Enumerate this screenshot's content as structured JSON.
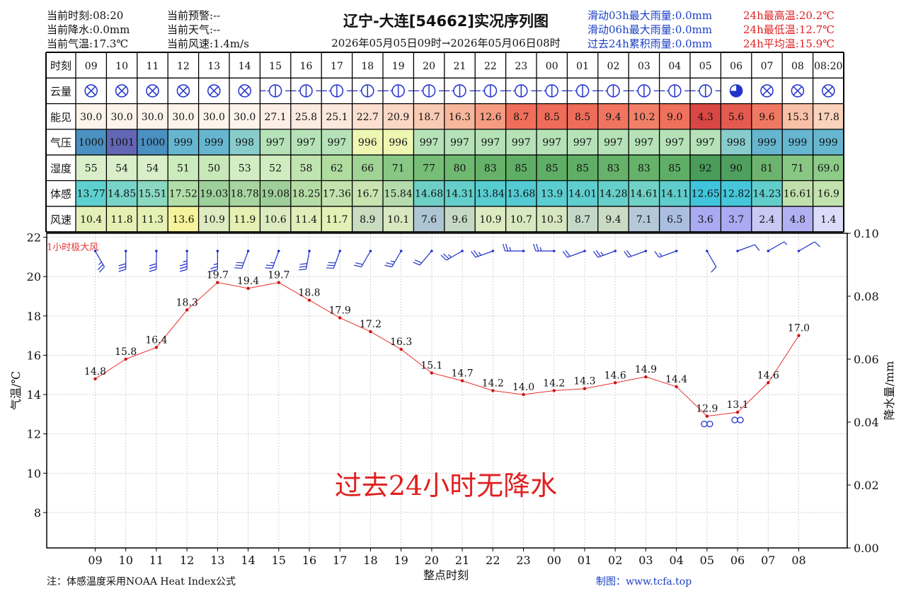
{
  "header": {
    "left": [
      {
        "label": "当前时刻",
        "value": "08:20"
      },
      {
        "label": "当前降水",
        "value": "0.0mm"
      },
      {
        "label": "当前气温",
        "value": "17.3℃"
      }
    ],
    "mid": [
      {
        "label": "当前预警",
        "value": "--"
      },
      {
        "label": "当前天气",
        "value": "--"
      },
      {
        "label": "当前风速",
        "value": "1.4m/s"
      }
    ],
    "title": "辽宁-大连[54662]实况序列图",
    "period": "2026年05月05日09时→2026年05月06日08时",
    "rain": [
      {
        "label": "滑动03h最大雨量",
        "value": "0.0mm"
      },
      {
        "label": "滑动06h最大雨量",
        "value": "0.0mm"
      },
      {
        "label": "过去24h累积雨量",
        "value": "0.0mm"
      }
    ],
    "temps": [
      {
        "label": "24h最高温",
        "value": "20.2℃"
      },
      {
        "label": "24h最低温",
        "value": "12.7℃"
      },
      {
        "label": "24h平均温",
        "value": "15.9℃"
      }
    ]
  },
  "table": {
    "row_labels": [
      "时刻",
      "云量",
      "能见",
      "气压",
      "湿度",
      "体感",
      "风速"
    ],
    "hours": [
      "09",
      "10",
      "11",
      "12",
      "13",
      "14",
      "15",
      "16",
      "17",
      "18",
      "19",
      "20",
      "21",
      "22",
      "23",
      "00",
      "01",
      "02",
      "03",
      "04",
      "05",
      "06",
      "07",
      "08",
      "08:20"
    ],
    "visibility": [
      "30.0",
      "30.0",
      "30.0",
      "30.0",
      "30.0",
      "30.0",
      "27.1",
      "25.8",
      "25.1",
      "22.7",
      "20.9",
      "18.7",
      "16.3",
      "12.6",
      "8.7",
      "8.5",
      "8.5",
      "9.4",
      "10.2",
      "9.0",
      "4.3",
      "5.6",
      "9.6",
      "15.3",
      "17.8"
    ],
    "pressure": [
      "1000",
      "1001",
      "1000",
      "999",
      "999",
      "998",
      "997",
      "997",
      "997",
      "996",
      "996",
      "997",
      "997",
      "997",
      "997",
      "997",
      "997",
      "997",
      "997",
      "997",
      "997",
      "998",
      "999",
      "999",
      "999"
    ],
    "humidity": [
      "55",
      "54",
      "54",
      "51",
      "50",
      "53",
      "52",
      "58",
      "62",
      "66",
      "71",
      "77",
      "80",
      "83",
      "85",
      "85",
      "85",
      "83",
      "83",
      "85",
      "92",
      "90",
      "81",
      "71",
      "69.0"
    ],
    "feels_like": [
      "13.77",
      "14.85",
      "15.51",
      "17.52",
      "19.03",
      "18.78",
      "19.08",
      "18.25",
      "17.36",
      "16.7",
      "15.84",
      "14.68",
      "14.31",
      "13.84",
      "13.68",
      "13.9",
      "14.01",
      "14.28",
      "14.61",
      "14.11",
      "12.65",
      "12.82",
      "14.23",
      "16.61",
      "16.9"
    ],
    "wind_speed": [
      "10.4",
      "11.8",
      "11.3",
      "13.6",
      "10.9",
      "11.9",
      "10.6",
      "11.4",
      "11.7",
      "8.9",
      "10.1",
      "7.6",
      "9.6",
      "10.9",
      "10.7",
      "10.3",
      "8.7",
      "9.4",
      "7.1",
      "6.5",
      "3.6",
      "3.7",
      "2.4",
      "4.8",
      "1.4"
    ],
    "cloud": [
      "overcast",
      "overcast",
      "overcast",
      "overcast",
      "overcast",
      "overcast",
      "half",
      "half",
      "half",
      "half",
      "half",
      "half",
      "half",
      "half",
      "half",
      "half",
      "half",
      "half",
      "half",
      "half",
      "half",
      "three-quarter",
      "overcast",
      "overcast",
      "overcast"
    ],
    "colors": {
      "visibility": [
        "#fdf4ec",
        "#fdf4ec",
        "#fdf4ec",
        "#fdf4ec",
        "#fdf4ec",
        "#fdf4ec",
        "#fcefe6",
        "#fcebe0",
        "#fce8dc",
        "#fcdfd0",
        "#fbd8c6",
        "#f9cbb4",
        "#f7b79c",
        "#f59c82",
        "#ef6f5b",
        "#ee6c59",
        "#ee6c59",
        "#f0745f",
        "#f28068",
        "#ef705b",
        "#d94745",
        "#e55a50",
        "#f07862",
        "#f8c0a6",
        "#fbd3bc"
      ],
      "pressure": [
        "#4a90c0",
        "#6366b4",
        "#4a90c0",
        "#66b6d0",
        "#66b6d0",
        "#88cccc",
        "#b6e2b8",
        "#b6e2b8",
        "#b6e2b8",
        "#eef7b2",
        "#eef7b2",
        "#b6e2b8",
        "#b6e2b8",
        "#b6e2b8",
        "#b6e2b8",
        "#b6e2b8",
        "#b6e2b8",
        "#b6e2b8",
        "#b6e2b8",
        "#b6e2b8",
        "#b6e2b8",
        "#88cccc",
        "#66b6d0",
        "#66b6d0",
        "#66b6d0"
      ],
      "humidity": [
        "#d8efca",
        "#d8efca",
        "#d8efca",
        "#ccebbd",
        "#c8e8b8",
        "#d2edc3",
        "#d0ecc1",
        "#c0e4b0",
        "#b0dca0",
        "#a0d494",
        "#88c784",
        "#76bd78",
        "#70b970",
        "#66b26a",
        "#5fae66",
        "#5fae66",
        "#5fae66",
        "#66b26a",
        "#66b26a",
        "#5fae66",
        "#4a9c5a",
        "#4fa05e",
        "#6cb46e",
        "#88c784",
        "#8ccb88"
      ],
      "feels_like": [
        "#5ed0d0",
        "#78d4c8",
        "#8ad8c0",
        "#b2dfa8",
        "#9ed09c",
        "#a8d4a0",
        "#9ecf9a",
        "#b6dca6",
        "#c4e2ae",
        "#c8e4b0",
        "#b6dcae",
        "#6ecfc6",
        "#64cfca",
        "#58cdd0",
        "#54cbd2",
        "#5ccdd0",
        "#60cece",
        "#66cfca",
        "#70d2c6",
        "#5fcdcc",
        "#40c4dc",
        "#46c6da",
        "#62cecc",
        "#bfe0ac",
        "#c2e2ae"
      ],
      "wind_speed": [
        "#e4f0b8",
        "#e6f0b2",
        "#e4f0b4",
        "#f6f49a",
        "#dcebc0",
        "#e6f0b2",
        "#dcebc0",
        "#e2eeba",
        "#e4f0b6",
        "#c8dcc0",
        "#d8e8c0",
        "#aec6d4",
        "#c4d8c4",
        "#dcebc0",
        "#d8e8c0",
        "#d6e6c0",
        "#c4d8c8",
        "#cadcc4",
        "#b4c8d8",
        "#aabee0",
        "#aaaaf2",
        "#aaaaf2",
        "#c8c8f4",
        "#b0b0f2",
        "#dcdcf8"
      ]
    }
  },
  "chart_data": {
    "type": "line",
    "x": [
      "09",
      "10",
      "11",
      "12",
      "13",
      "14",
      "15",
      "16",
      "17",
      "18",
      "19",
      "20",
      "21",
      "22",
      "23",
      "00",
      "01",
      "02",
      "03",
      "04",
      "05",
      "06",
      "07",
      "08"
    ],
    "temperature": [
      14.8,
      15.8,
      16.4,
      18.3,
      19.7,
      19.4,
      19.7,
      18.8,
      17.9,
      17.2,
      16.3,
      15.1,
      14.7,
      14.2,
      14.0,
      14.2,
      14.3,
      14.6,
      14.9,
      14.4,
      12.9,
      13.1,
      14.6,
      17.0
    ],
    "temp_labels": [
      "14.8",
      "15.8",
      "16.4",
      "18.3",
      "19.7",
      "19.4",
      "19.7",
      "18.8",
      "17.9",
      "17.2",
      "16.3",
      "15.1",
      "14.7",
      "14.2",
      "14.0",
      "14.2",
      "14.3",
      "14.6",
      "14.9",
      "14.4",
      "12.9",
      "13.1",
      "14.6",
      "17.0"
    ],
    "fog_hours": [
      "05",
      "06"
    ],
    "xlabel": "整点时刻",
    "ylabel_left": "气温/℃",
    "ylabel_right": "降水量/mm",
    "ylim_left": [
      6.2,
      22.2
    ],
    "ylim_right": [
      0,
      0.1
    ],
    "yticks_left": [
      "8",
      "10",
      "12",
      "14",
      "16",
      "18",
      "20",
      "22"
    ],
    "yticks_right": [
      "0.00",
      "0.02",
      "0.04",
      "0.06",
      "0.08",
      "0.10"
    ],
    "wind_title": "1小时极大风",
    "wind_direction_deg": [
      150,
      180,
      180,
      180,
      180,
      200,
      200,
      190,
      200,
      210,
      210,
      220,
      240,
      250,
      270,
      270,
      250,
      250,
      250,
      250,
      150,
      70,
      60,
      60
    ],
    "no_rain_text": "过去24小时无降水",
    "grid": true,
    "colors": {
      "temp_line": "#e83030",
      "temp_dot": "#d01010",
      "wind": "#2030c8",
      "fog": "#3040d0",
      "no_rain": "#e02020"
    }
  },
  "footer": {
    "note": "注：体感温度采用NOAA Heat Index公式",
    "credit": "制图：www.tcfa.top"
  }
}
